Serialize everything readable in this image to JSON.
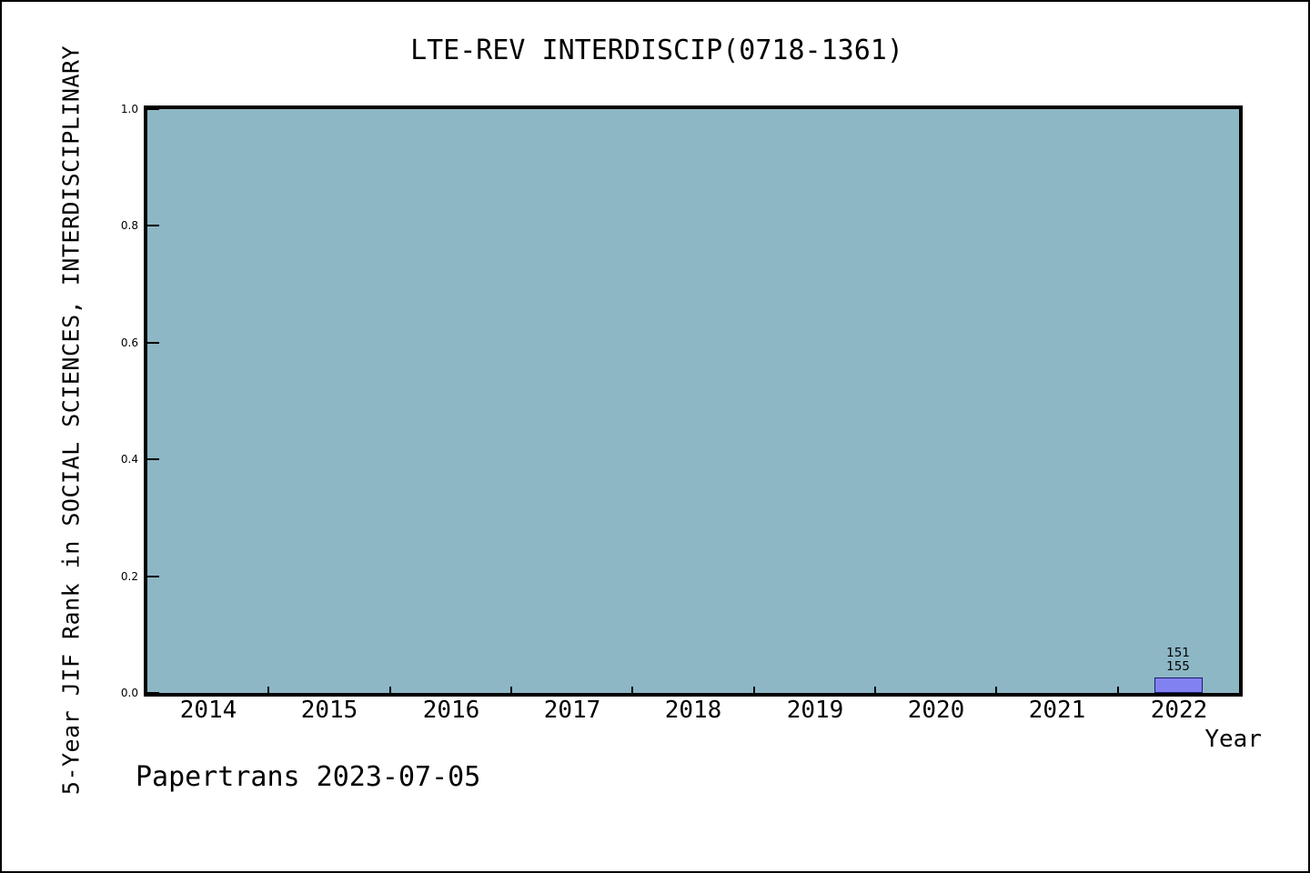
{
  "window": {
    "background": "#ffffff",
    "frame_border_color": "#000000"
  },
  "chart_data": {
    "type": "bar",
    "title": "LTE-REV INTERDISCIP(0718-1361)",
    "xlabel": "Year",
    "ylabel": "5-Year JIF Rank in SOCIAL SCIENCES, INTERDISCIPLINARY",
    "categories": [
      "2014",
      "2015",
      "2016",
      "2017",
      "2018",
      "2019",
      "2020",
      "2021",
      "2022"
    ],
    "series": [
      {
        "name": "5-Year JIF Rank",
        "values": [
          null,
          null,
          null,
          null,
          null,
          null,
          null,
          null,
          0.026
        ]
      }
    ],
    "bar_labels": [
      null,
      null,
      null,
      null,
      null,
      null,
      null,
      null,
      [
        "151",
        "155"
      ]
    ],
    "ylim": [
      0,
      1
    ],
    "yticks": [
      0,
      0.2,
      0.4,
      0.6,
      0.8,
      1.0
    ],
    "ytick_labels": [
      "0.0",
      "0.2",
      "0.4",
      "0.6",
      "0.8",
      "1.0"
    ],
    "grid": false,
    "legend_position": "none",
    "plot_background": "#8db7c5",
    "bar_fill": "#8181f2",
    "bar_edge": "#1c1c6e",
    "axis_color": "#000000",
    "text_color": "#000000"
  },
  "footer": {
    "watermark": "Papertrans 2023-07-05"
  }
}
